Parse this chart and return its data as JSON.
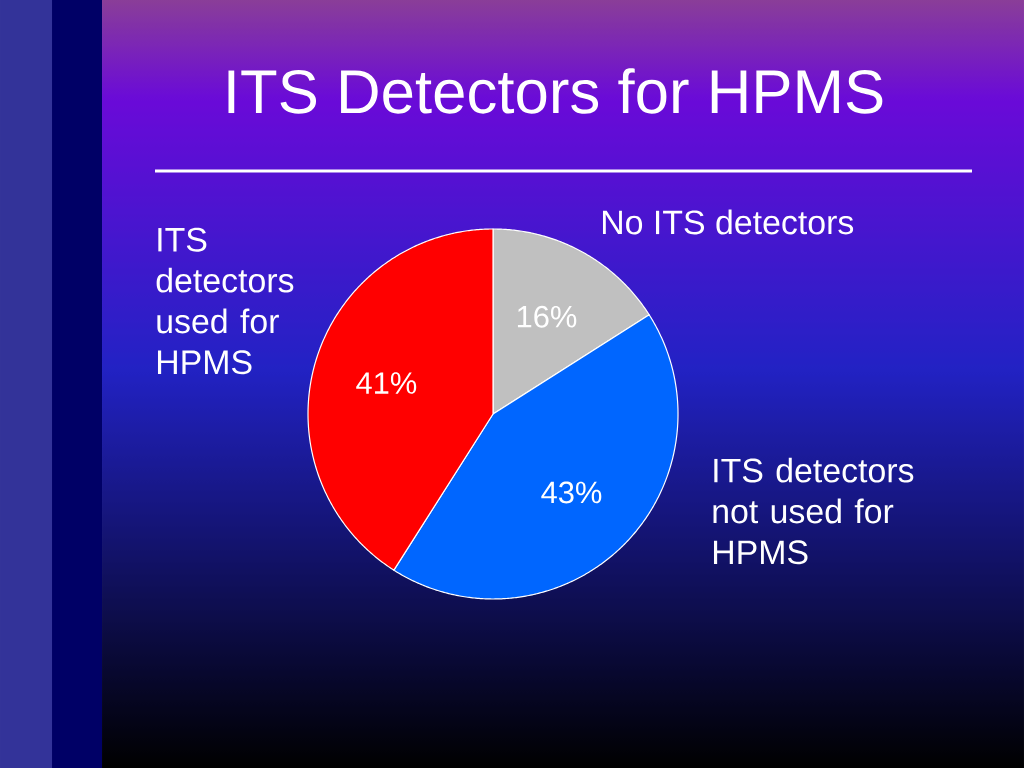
{
  "chart_data": {
    "type": "pie",
    "title": "ITS Detectors for HPMS",
    "categories": [
      "No ITS detectors",
      "ITS detectors not used for HPMS",
      "ITS detectors used for HPMS"
    ],
    "values": [
      16,
      43,
      41
    ],
    "colors": [
      "#c0c0c0",
      "#0066ff",
      "#ff0000"
    ],
    "value_labels": [
      "16%",
      "43%",
      "41%"
    ]
  }
}
